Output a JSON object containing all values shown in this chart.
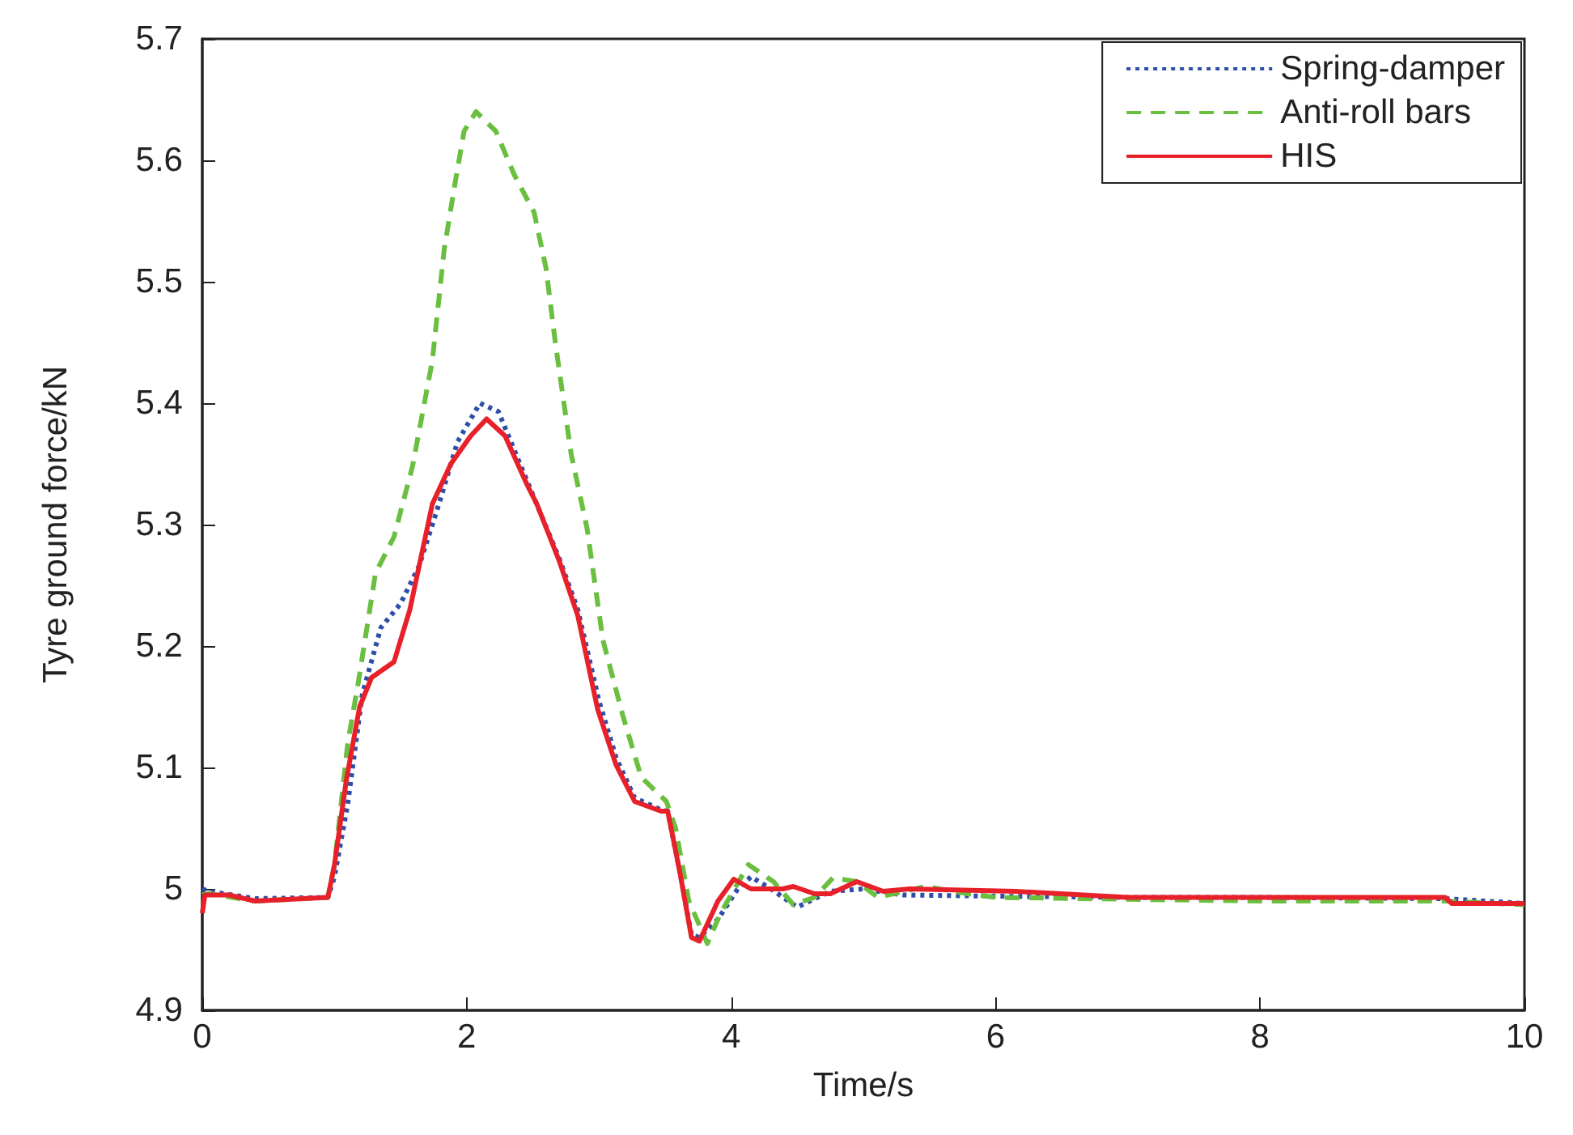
{
  "chart_data": {
    "type": "line",
    "xlabel": "Time/s",
    "ylabel": "Tyre ground force/kN",
    "xlim": [
      0,
      10
    ],
    "xticks": [
      0,
      2,
      4,
      6,
      8,
      10
    ],
    "ylim": [
      4.9,
      5.7
    ],
    "yticks": [
      4.9,
      5,
      5.1,
      5.2,
      5.3,
      5.4,
      5.5,
      5.6,
      5.7
    ],
    "grid": false,
    "legend": "top right",
    "marker": "none",
    "series": [
      {
        "name": "Spring-damper",
        "color": "#2e4fa8",
        "line_style": "dotted",
        "x": [
          0,
          0.05,
          0.4,
          0.95,
          1.0,
          1.1,
          1.21,
          1.35,
          1.5,
          1.64,
          1.79,
          1.93,
          2.1,
          2.24,
          2.46,
          2.7,
          2.84,
          3.0,
          3.13,
          3.27,
          3.47,
          3.52,
          3.61,
          3.7,
          3.76,
          3.9,
          4.05,
          4.15,
          4.3,
          4.5,
          4.75,
          5.0,
          5.3,
          6.0,
          7.0,
          8.0,
          9.4,
          10
        ],
        "values": [
          5.0,
          4.998,
          4.992,
          4.993,
          5.01,
          5.07,
          5.16,
          5.215,
          5.235,
          5.266,
          5.317,
          5.368,
          5.4,
          5.393,
          5.335,
          5.272,
          5.23,
          5.155,
          5.108,
          5.075,
          5.065,
          5.064,
          5.015,
          4.962,
          4.96,
          4.975,
          5.0,
          5.01,
          5.0,
          4.985,
          4.998,
          5.0,
          4.995,
          4.994,
          4.993,
          4.993,
          4.992,
          4.988
        ]
      },
      {
        "name": "Anti-roll bars",
        "color": "#6abf40",
        "line_style": "dashed",
        "x": [
          0,
          0.05,
          0.4,
          0.95,
          1.0,
          1.1,
          1.18,
          1.31,
          1.45,
          1.59,
          1.74,
          1.83,
          1.91,
          1.98,
          2.07,
          2.22,
          2.36,
          2.51,
          2.6,
          2.67,
          2.79,
          2.91,
          3.03,
          3.18,
          3.32,
          3.51,
          3.58,
          3.68,
          3.82,
          3.92,
          4.13,
          4.32,
          4.47,
          4.63,
          4.77,
          4.95,
          5.11,
          5.47,
          5.79,
          6.0,
          8.0,
          9.4,
          10
        ],
        "values": [
          4.995,
          4.996,
          4.99,
          4.993,
          5.02,
          5.12,
          5.17,
          5.26,
          5.29,
          5.348,
          5.435,
          5.527,
          5.58,
          5.624,
          5.64,
          5.624,
          5.588,
          5.557,
          5.511,
          5.45,
          5.358,
          5.297,
          5.205,
          5.143,
          5.092,
          5.072,
          5.05,
          4.99,
          4.955,
          4.98,
          5.02,
          5.006,
          4.987,
          4.993,
          5.009,
          5.006,
          4.993,
          5.002,
          4.996,
          4.993,
          4.99,
          4.99,
          4.987
        ]
      },
      {
        "name": "HIS",
        "color": "#e8202a",
        "line_style": "solid",
        "x": [
          0,
          0.02,
          0.2,
          0.4,
          0.95,
          1.0,
          1.09,
          1.19,
          1.28,
          1.45,
          1.57,
          1.74,
          1.88,
          2.03,
          2.15,
          2.29,
          2.46,
          2.53,
          2.7,
          2.84,
          2.99,
          3.13,
          3.27,
          3.47,
          3.52,
          3.61,
          3.7,
          3.76,
          3.9,
          4.02,
          4.15,
          4.39,
          4.47,
          4.63,
          4.75,
          4.95,
          5.15,
          5.35,
          6.15,
          7.0,
          8.0,
          9.4,
          9.45,
          10
        ],
        "values": [
          4.98,
          4.995,
          4.995,
          4.99,
          4.993,
          5.02,
          5.09,
          5.15,
          5.174,
          5.187,
          5.23,
          5.317,
          5.35,
          5.373,
          5.387,
          5.373,
          5.332,
          5.317,
          5.27,
          5.225,
          5.148,
          5.102,
          5.072,
          5.064,
          5.064,
          5.015,
          4.96,
          4.957,
          4.99,
          5.008,
          5.0,
          5.0,
          5.002,
          4.996,
          4.996,
          5.006,
          4.998,
          5.0,
          4.998,
          4.993,
          4.993,
          4.993,
          4.988,
          4.988
        ]
      }
    ]
  }
}
